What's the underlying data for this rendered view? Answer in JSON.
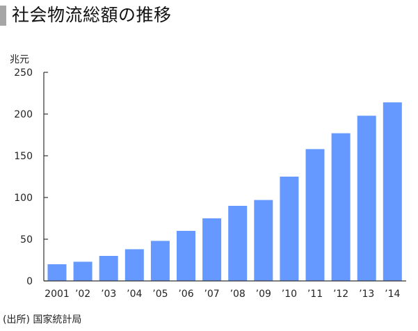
{
  "chart_data": {
    "type": "bar",
    "title": "社会物流総額の推移",
    "unit_label": "兆元",
    "source": "(出所) 国家統計局",
    "categories": [
      "2001",
      "’02",
      "’03",
      "’04",
      "’05",
      "’06",
      "’07",
      "’08",
      "’09",
      "’10",
      "’11",
      "’12",
      "’13",
      "’14"
    ],
    "values": [
      20,
      23,
      30,
      38,
      48,
      60,
      75,
      90,
      97,
      125,
      158,
      177,
      198,
      214
    ],
    "ylim": [
      0,
      250
    ],
    "yticks": [
      0,
      50,
      100,
      150,
      200,
      250
    ],
    "grid": false,
    "bar_color": "#6699ff",
    "axis_color": "#333333"
  }
}
